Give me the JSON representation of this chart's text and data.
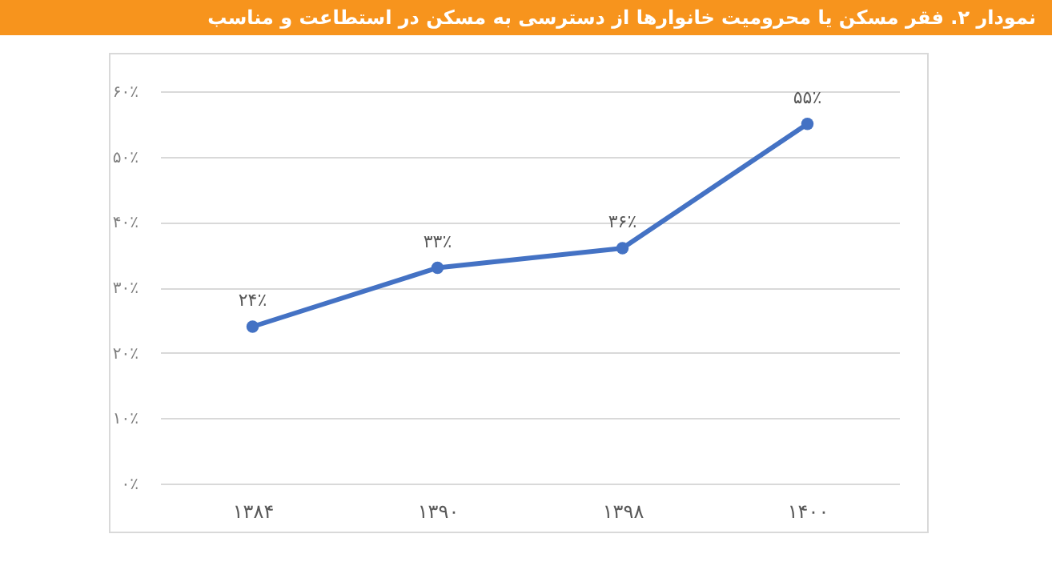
{
  "chart_data": {
    "type": "line",
    "title": "نمودار ۲. فقر مسکن یا محرومیت خانوارها از دسترسی به مسکن در استطاعت و مناسب",
    "categories": [
      "۱۳۸۴",
      "۱۳۹۰",
      "۱۳۹۸",
      "۱۴۰۰"
    ],
    "series": [
      {
        "color": "#4472c4",
        "values": [
          24,
          33,
          36,
          55
        ],
        "value_labels": [
          "۲۴٪",
          "۳۳٪",
          "۳۶٪",
          "۵۵٪"
        ]
      }
    ],
    "ylim": [
      0,
      60
    ],
    "yticks": [
      {
        "value": 0,
        "label": "۰٪"
      },
      {
        "value": 10,
        "label": "۱۰٪"
      },
      {
        "value": 20,
        "label": "۲۰٪"
      },
      {
        "value": 30,
        "label": "۳۰٪"
      },
      {
        "value": 40,
        "label": "۴۰٪"
      },
      {
        "value": 50,
        "label": "۵۰٪"
      },
      {
        "value": 60,
        "label": "۶۰٪"
      }
    ],
    "grid": "y",
    "marker": "circle",
    "line_style": "solid"
  }
}
